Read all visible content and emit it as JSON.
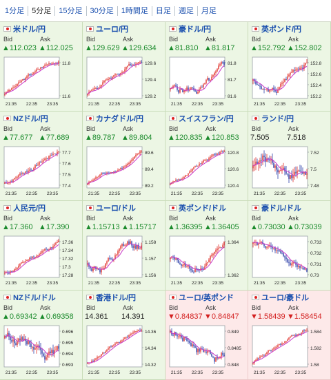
{
  "tabs": [
    {
      "label": "1分足",
      "active": false
    },
    {
      "label": "5分足",
      "active": true
    },
    {
      "label": "15分足",
      "active": false
    },
    {
      "label": "30分足",
      "active": false
    },
    {
      "label": "1時間足",
      "active": false
    },
    {
      "label": "日足",
      "active": false
    },
    {
      "label": "週足",
      "active": false
    },
    {
      "label": "月足",
      "active": false
    }
  ],
  "labels": {
    "bid": "Bid",
    "ask": "Ask"
  },
  "colors": {
    "up": "#1a8a2b",
    "down": "#d32020",
    "candle_up": "#e0302a",
    "candle_down": "#2b3da8",
    "ma": "#c838c8"
  },
  "time_labels": [
    "21:35",
    "22:35",
    "23:35"
  ],
  "cards": [
    {
      "pair": "米ドル/円",
      "bid": "▲112.023",
      "ask": "▲112.025",
      "dir": "up",
      "ticks": [
        "11.8",
        "11.6"
      ],
      "trend": "up"
    },
    {
      "pair": "ユーロ/円",
      "bid": "▲129.629",
      "ask": "▲129.634",
      "dir": "up",
      "ticks": [
        "129.6",
        "129.4",
        "129.2"
      ],
      "trend": "up"
    },
    {
      "pair": "豪ドル/円",
      "bid": "▲81.810",
      "ask": "▲81.817",
      "dir": "up",
      "ticks": [
        "81.8",
        "81.7",
        "81.6"
      ],
      "trend": "vol"
    },
    {
      "pair": "英ポンド/円",
      "bid": "▲152.792",
      "ask": "▲152.802",
      "dir": "up",
      "ticks": [
        "152.8",
        "152.6",
        "152.4",
        "152.2"
      ],
      "trend": "dipup"
    },
    {
      "pair": "NZドル/円",
      "bid": "▲77.677",
      "ask": "▲77.689",
      "dir": "up",
      "ticks": [
        "77.7",
        "77.6",
        "77.5",
        "77.4"
      ],
      "trend": "up"
    },
    {
      "pair": "カナダドル/円",
      "bid": "▲89.787",
      "ask": "▲89.804",
      "dir": "up",
      "ticks": [
        "89.6",
        "89.4",
        "89.2"
      ],
      "trend": "up"
    },
    {
      "pair": "スイスフラン/円",
      "bid": "▲120.835",
      "ask": "▲120.853",
      "dir": "up",
      "ticks": [
        "120.8",
        "120.6",
        "120.4"
      ],
      "trend": "up"
    },
    {
      "pair": "ランド/円",
      "bid": "7.505",
      "ask": "7.518",
      "dir": "flat",
      "ticks": [
        "7.52",
        "7.5",
        "7.48"
      ],
      "trend": "flat"
    },
    {
      "pair": "人民元/円",
      "bid": "▲17.360",
      "ask": "▲17.390",
      "dir": "up",
      "ticks": [
        "17.36",
        "17.34",
        "17.32",
        "17.3",
        "17.28"
      ],
      "trend": "up"
    },
    {
      "pair": "ユーロ/ドル",
      "bid": "▲1.15713",
      "ask": "▲1.15717",
      "dir": "up",
      "ticks": [
        "1.158",
        "1.157",
        "1.156"
      ],
      "trend": "vol"
    },
    {
      "pair": "英ポンド/ドル",
      "bid": "▲1.36395",
      "ask": "▲1.36405",
      "dir": "up",
      "ticks": [
        "1.364",
        "1.362"
      ],
      "trend": "dipup"
    },
    {
      "pair": "豪ドル/ドル",
      "bid": "▲0.73030",
      "ask": "▲0.73039",
      "dir": "up",
      "ticks": [
        "0.733",
        "0.732",
        "0.731",
        "0.73"
      ],
      "trend": "down"
    },
    {
      "pair": "NZドル/ドル",
      "bid": "▲0.69342",
      "ask": "▲0.69358",
      "dir": "up",
      "ticks": [
        "0.696",
        "0.695",
        "0.694",
        "0.693"
      ],
      "trend": "flat"
    },
    {
      "pair": "香港ドル/円",
      "bid": "14.361",
      "ask": "14.391",
      "dir": "flat",
      "ticks": [
        "14.36",
        "14.34",
        "14.32"
      ],
      "trend": "up"
    },
    {
      "pair": "ユーロ/英ポンド",
      "bid": "▼0.84837",
      "ask": "▼0.84847",
      "dir": "down",
      "ticks": [
        "0.849",
        "0.8485",
        "0.848"
      ],
      "trend": "vol"
    },
    {
      "pair": "ユーロ/豪ドル",
      "bid": "▼1.58439",
      "ask": "▼1.58454",
      "dir": "down",
      "ticks": [
        "1.584",
        "1.582",
        "1.58"
      ],
      "trend": "up"
    }
  ]
}
